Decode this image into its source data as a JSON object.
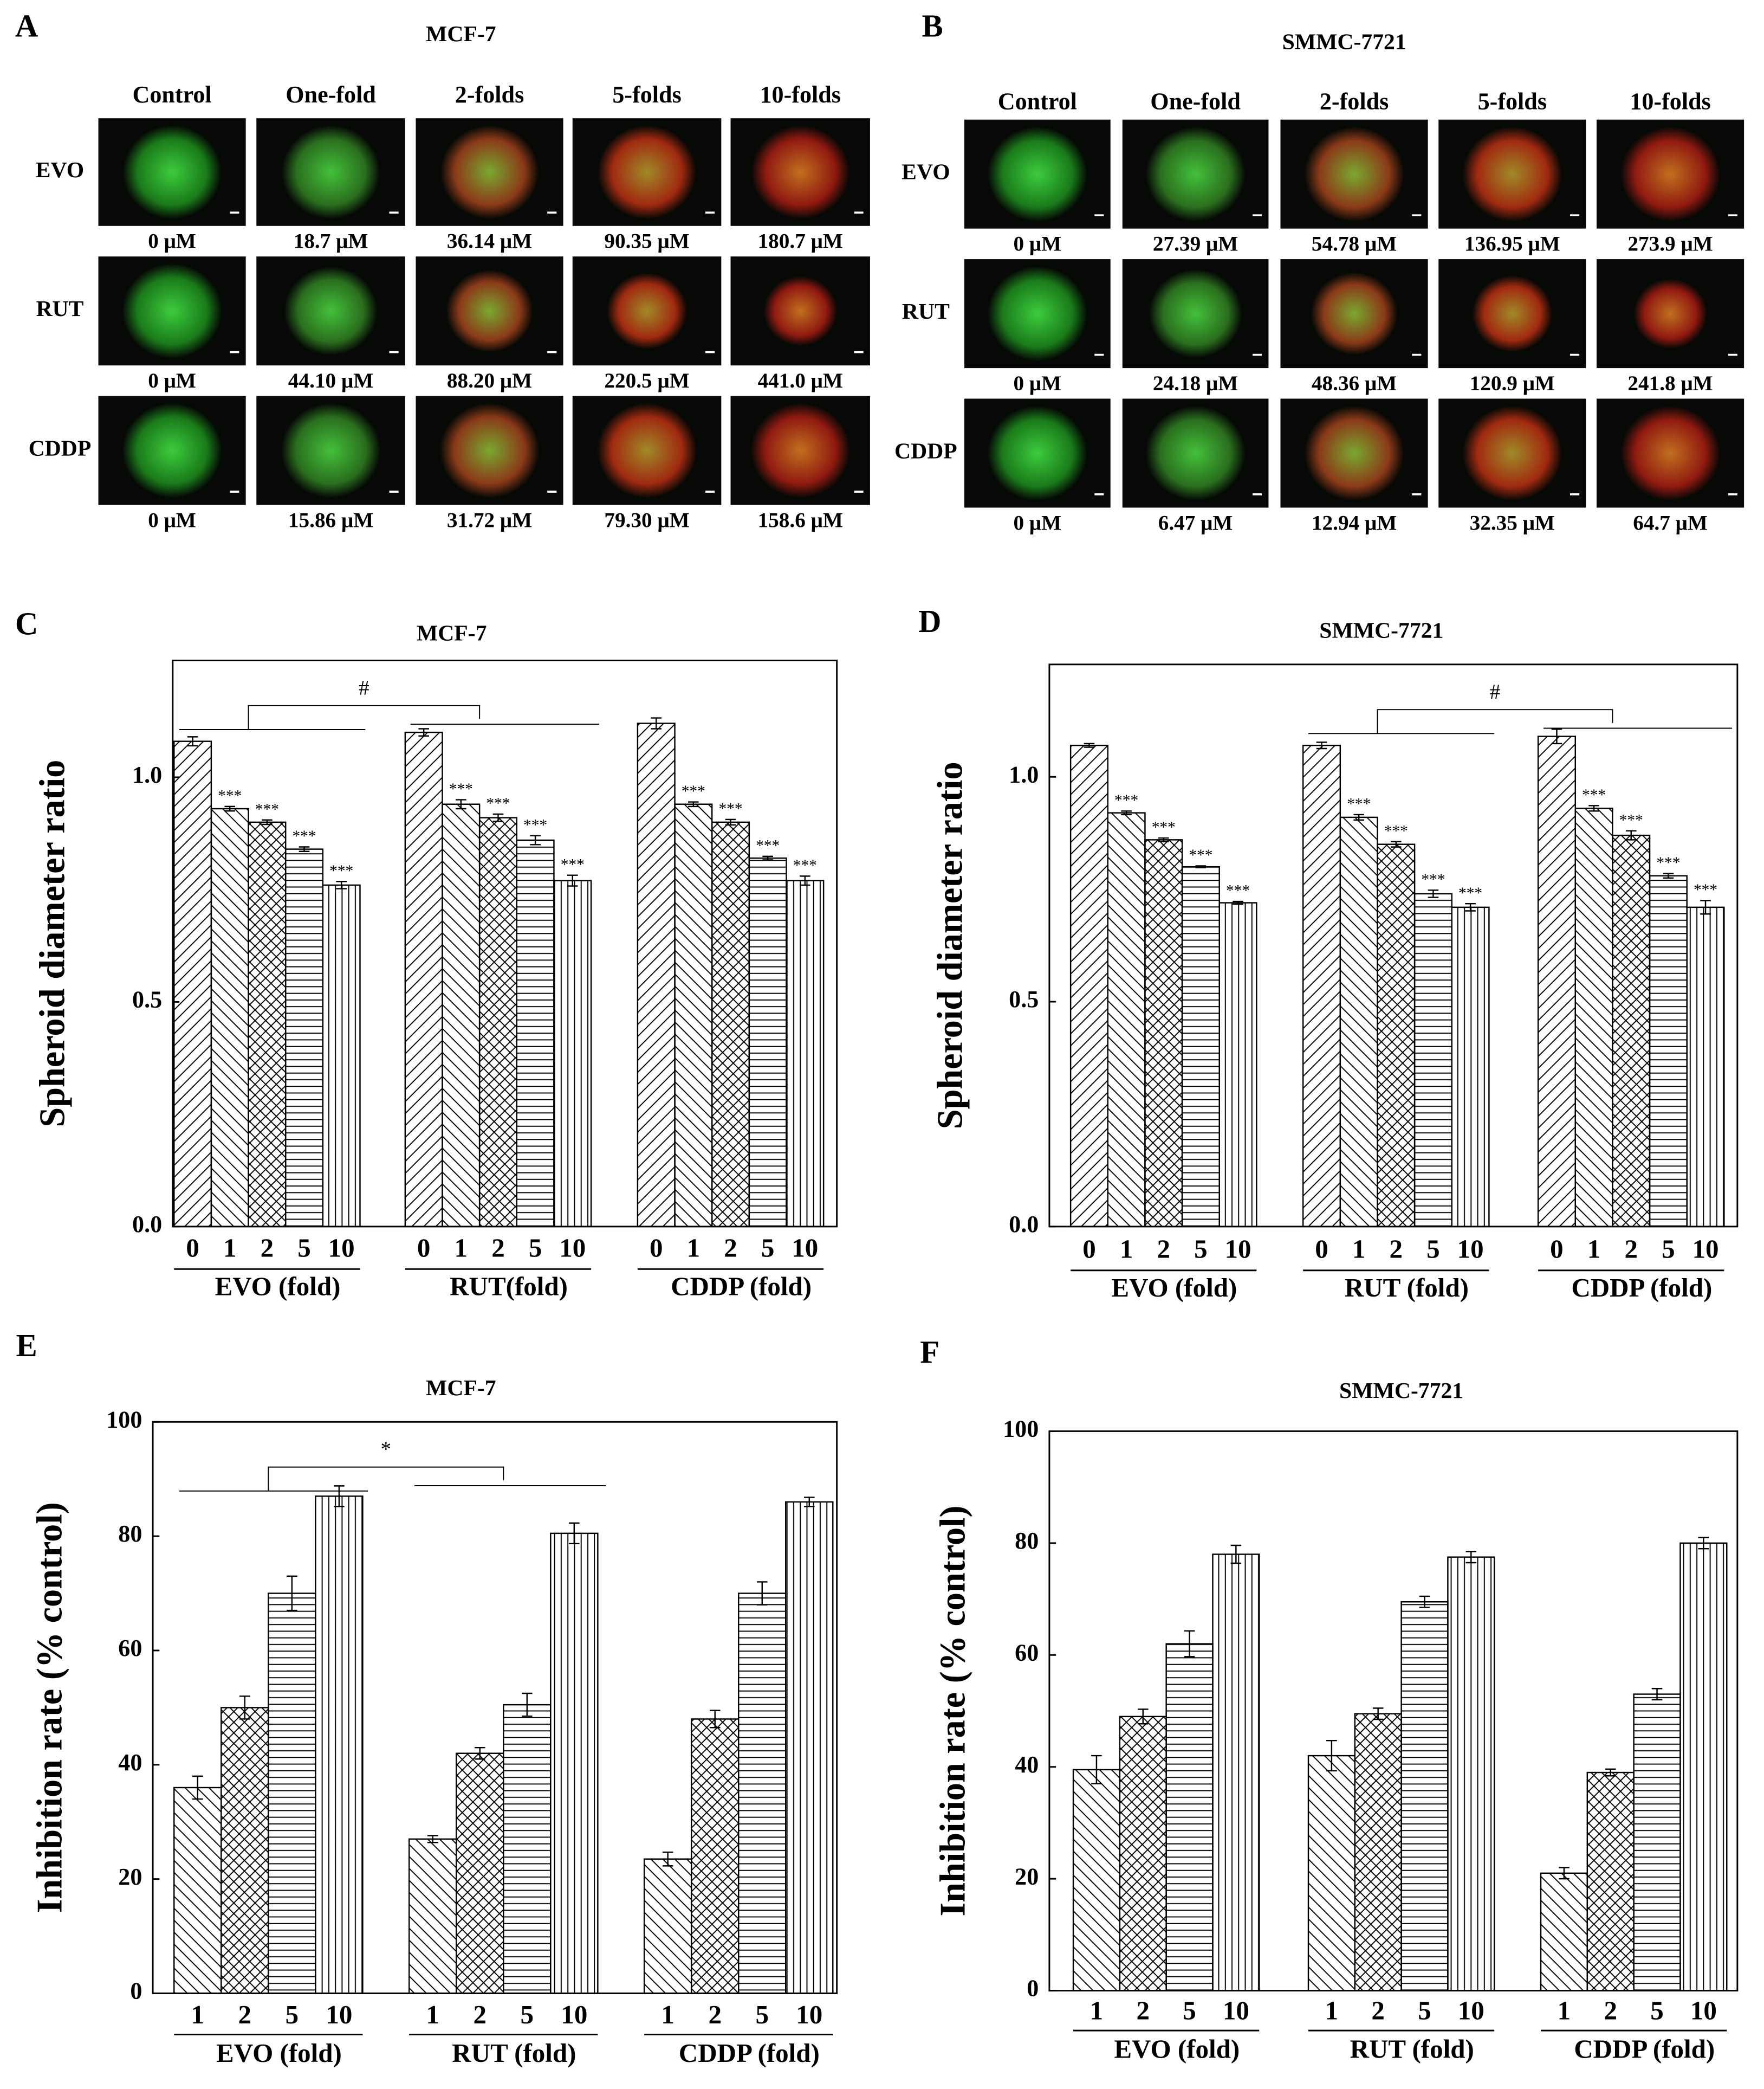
{
  "image_panels": [
    {
      "panel": "A",
      "title": "MCF-7",
      "columns": [
        "Control",
        "One-fold",
        "2-folds",
        "5-folds",
        "10-folds"
      ],
      "rows": [
        {
          "name": "EVO",
          "doses": [
            "0 μM",
            "18.7 μM",
            "36.14 μM",
            "90.35 μM",
            "180.7 μM"
          ]
        },
        {
          "name": "RUT",
          "doses": [
            "0 μM",
            "44.10 μM",
            "88.20 μM",
            "220.5 μM",
            "441.0 μM"
          ]
        },
        {
          "name": "CDDP",
          "doses": [
            "0 μM",
            "15.86 μM",
            "31.72 μM",
            "79.30 μM",
            "158.6 μM"
          ]
        }
      ]
    },
    {
      "panel": "B",
      "title": "SMMC-7721",
      "columns": [
        "Control",
        "One-fold",
        "2-folds",
        "5-folds",
        "10-folds"
      ],
      "rows": [
        {
          "name": "EVO",
          "doses": [
            "0 μM",
            "27.39 μM",
            "54.78 μM",
            "136.95 μM",
            "273.9 μM"
          ]
        },
        {
          "name": "RUT",
          "doses": [
            "0 μM",
            "24.18 μM",
            "48.36 μM",
            "120.9 μM",
            "241.8 μM"
          ]
        },
        {
          "name": "CDDP",
          "doses": [
            "0 μM",
            "6.47 μM",
            "12.94 μM",
            "32.35 μM",
            "64.7 μM"
          ]
        }
      ]
    }
  ],
  "chart_data": [
    {
      "type": "bar",
      "panel": "C",
      "title": "MCF-7",
      "y_label": "Spheroid diameter ratio",
      "categories": [
        "0",
        "1",
        "2",
        "5",
        "10"
      ],
      "hatches": [
        "fwd",
        "back",
        "cross",
        "horiz",
        "vert"
      ],
      "ylim": [
        0,
        1.26
      ],
      "yticks": [
        {
          "value": 0,
          "label": "0.0"
        },
        {
          "value": 0.5,
          "label": "0.5"
        },
        {
          "value": 1,
          "label": "1.0"
        }
      ],
      "groups": [
        {
          "name": "EVO (fold)",
          "values": [
            1.08,
            0.93,
            0.9,
            0.84,
            0.76
          ],
          "errors": [
            0.01,
            0.005,
            0.005,
            0.005,
            0.008
          ],
          "annotations": [
            null,
            "***",
            "***",
            "***",
            "***"
          ]
        },
        {
          "name": "RUT(fold)",
          "values": [
            1.1,
            0.94,
            0.91,
            0.86,
            0.77
          ],
          "errors": [
            0.008,
            0.01,
            0.008,
            0.01,
            0.012
          ],
          "annotations": [
            null,
            "***",
            "***",
            "***",
            "***"
          ]
        },
        {
          "name": "CDDP (fold)",
          "values": [
            1.12,
            0.94,
            0.9,
            0.82,
            0.77
          ],
          "errors": [
            0.012,
            0.005,
            0.006,
            0.004,
            0.01
          ],
          "annotations": [
            null,
            "***",
            "***",
            "***",
            "***"
          ]
        }
      ],
      "significance": {
        "label": "#",
        "between": [
          0,
          1
        ]
      }
    },
    {
      "type": "bar",
      "panel": "D",
      "title": "SMMC-7721",
      "y_label": "Spheroid diameter ratio",
      "categories": [
        "0",
        "1",
        "2",
        "5",
        "10"
      ],
      "hatches": [
        "fwd",
        "back",
        "cross",
        "horiz",
        "vert"
      ],
      "ylim": [
        0,
        1.25
      ],
      "yticks": [
        {
          "value": 0,
          "label": "0.0"
        },
        {
          "value": 0.5,
          "label": "0.5"
        },
        {
          "value": 1,
          "label": "1.0"
        }
      ],
      "groups": [
        {
          "name": "EVO (fold)",
          "values": [
            1.07,
            0.92,
            0.86,
            0.8,
            0.72
          ],
          "errors": [
            0.004,
            0.004,
            0.004,
            0.002,
            0.003
          ],
          "annotations": [
            null,
            "***",
            "***",
            "***",
            "***"
          ]
        },
        {
          "name": "RUT (fold)",
          "values": [
            1.07,
            0.91,
            0.85,
            0.74,
            0.71
          ],
          "errors": [
            0.007,
            0.006,
            0.006,
            0.008,
            0.008
          ],
          "annotations": [
            null,
            "***",
            "***",
            "***",
            "***"
          ]
        },
        {
          "name": "CDDP (fold)",
          "values": [
            1.09,
            0.93,
            0.87,
            0.78,
            0.71
          ],
          "errors": [
            0.016,
            0.006,
            0.01,
            0.005,
            0.015
          ],
          "annotations": [
            null,
            "***",
            "***",
            "***",
            "***"
          ]
        }
      ],
      "significance": {
        "label": "#",
        "between": [
          1,
          2
        ]
      }
    },
    {
      "type": "bar",
      "panel": "E",
      "title": "MCF-7",
      "y_label": "Inhibition rate (% control)",
      "categories": [
        "1",
        "2",
        "5",
        "10"
      ],
      "hatches": [
        "back",
        "cross",
        "horiz",
        "vert"
      ],
      "ylim": [
        0,
        100
      ],
      "yticks": [
        0,
        20,
        40,
        60,
        80,
        100
      ],
      "groups": [
        {
          "name": "EVO (fold)",
          "values": [
            36,
            50,
            70,
            87
          ],
          "errors": [
            2,
            2,
            3,
            1.8
          ]
        },
        {
          "name": "RUT (fold)",
          "values": [
            27,
            42,
            50.5,
            80.5
          ],
          "errors": [
            0.6,
            1,
            2,
            1.8
          ]
        },
        {
          "name": "CDDP (fold)",
          "values": [
            23.5,
            48,
            70,
            86
          ],
          "errors": [
            1.2,
            1.5,
            2,
            0.8
          ]
        }
      ],
      "significance": {
        "label": "*",
        "between": [
          0,
          1
        ]
      }
    },
    {
      "type": "bar",
      "panel": "F",
      "title": "SMMC-7721",
      "y_label": "Inhibition rate (% control)",
      "categories": [
        "1",
        "2",
        "5",
        "10"
      ],
      "hatches": [
        "back",
        "cross",
        "horiz",
        "vert"
      ],
      "ylim": [
        0,
        100
      ],
      "yticks": [
        0,
        20,
        40,
        60,
        80,
        100
      ],
      "groups": [
        {
          "name": "EVO (fold)",
          "values": [
            39.5,
            49,
            62,
            78
          ],
          "errors": [
            2.5,
            1.3,
            2.3,
            1.6
          ]
        },
        {
          "name": "RUT (fold)",
          "values": [
            42,
            49.5,
            69.5,
            77.5
          ],
          "errors": [
            2.7,
            1,
            1,
            1
          ]
        },
        {
          "name": "CDDP (fold)",
          "values": [
            21,
            39,
            53,
            80
          ],
          "errors": [
            1,
            0.6,
            1,
            1
          ]
        }
      ]
    }
  ]
}
